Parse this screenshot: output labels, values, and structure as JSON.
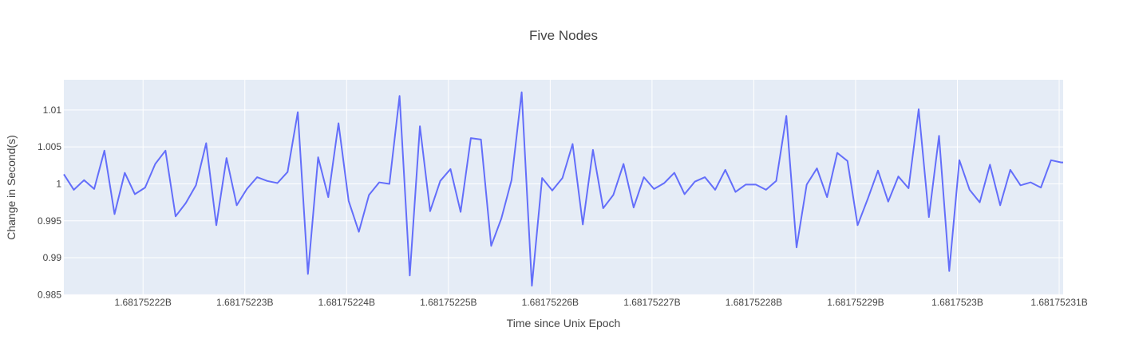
{
  "chart_data": {
    "type": "line",
    "title": "Five Nodes",
    "xlabel": "Time since Unix Epoch",
    "ylabel": "Change in Second(s)",
    "xlim": [
      1681752212.22,
      1681752310.39
    ],
    "ylim": [
      0.98493,
      1.01409
    ],
    "grid": true,
    "x_ticks": [
      1681752220,
      1681752230,
      1681752240,
      1681752250,
      1681752260,
      1681752270,
      1681752280,
      1681752290,
      1681752300,
      1681752310
    ],
    "x_tick_labels": [
      "1.68175222B",
      "1.68175223B",
      "1.68175224B",
      "1.68175225B",
      "1.68175226B",
      "1.68175227B",
      "1.68175228B",
      "1.68175229B",
      "1.6817523B",
      "1.68175231B"
    ],
    "y_ticks": [
      0.985,
      0.99,
      0.995,
      1.0,
      1.005,
      1.01
    ],
    "y_tick_labels": [
      "0.985",
      "0.99",
      "0.995",
      "1",
      "1.005",
      "1.01"
    ],
    "colors": {
      "line": "#636efa",
      "plot_bg": "#e5ecf6",
      "grid": "#ffffff"
    },
    "series": [
      {
        "x": [
          1681752212.22,
          1681752213.2,
          1681752214.2,
          1681752215.2,
          1681752216.2,
          1681752217.2,
          1681752218.2,
          1681752219.2,
          1681752220.2,
          1681752221.2,
          1681752222.2,
          1681752223.2,
          1681752224.2,
          1681752225.2,
          1681752226.2,
          1681752227.2,
          1681752228.2,
          1681752229.2,
          1681752230.2,
          1681752231.2,
          1681752232.2,
          1681752233.2,
          1681752234.2,
          1681752235.2,
          1681752236.2,
          1681752237.2,
          1681752238.2,
          1681752239.2,
          1681752240.2,
          1681752241.2,
          1681752242.2,
          1681752243.2,
          1681752244.2,
          1681752245.2,
          1681752246.2,
          1681752247.2,
          1681752248.2,
          1681752249.2,
          1681752250.2,
          1681752251.2,
          1681752252.2,
          1681752253.2,
          1681752254.2,
          1681752255.2,
          1681752256.2,
          1681752257.2,
          1681752258.2,
          1681752259.2,
          1681752260.2,
          1681752261.2,
          1681752262.2,
          1681752263.2,
          1681752264.2,
          1681752265.2,
          1681752266.2,
          1681752267.2,
          1681752268.2,
          1681752269.2,
          1681752270.2,
          1681752271.2,
          1681752272.2,
          1681752273.2,
          1681752274.2,
          1681752275.2,
          1681752276.2,
          1681752277.2,
          1681752278.2,
          1681752279.2,
          1681752280.2,
          1681752281.2,
          1681752282.2,
          1681752283.2,
          1681752284.2,
          1681752285.2,
          1681752286.2,
          1681752287.2,
          1681752288.2,
          1681752289.2,
          1681752290.2,
          1681752291.2,
          1681752292.2,
          1681752293.2,
          1681752294.2,
          1681752295.2,
          1681752296.2,
          1681752297.2,
          1681752298.2,
          1681752299.2,
          1681752300.2,
          1681752301.2,
          1681752302.2,
          1681752303.2,
          1681752304.2,
          1681752305.2,
          1681752306.2,
          1681752307.2,
          1681752308.2,
          1681752309.2,
          1681752310.2,
          1681752310.39
        ],
        "y": [
          1.0013,
          0.9992,
          1.0005,
          0.9993,
          1.0045,
          0.9959,
          1.0015,
          0.9986,
          0.9995,
          1.0027,
          1.0045,
          0.9956,
          0.9974,
          0.9998,
          1.0055,
          0.9944,
          1.0035,
          0.9971,
          0.9993,
          1.0009,
          1.0004,
          1.0001,
          1.0016,
          1.0097,
          0.9878,
          1.0036,
          0.9982,
          1.0082,
          0.9977,
          0.9935,
          0.9985,
          1.0002,
          1.0,
          1.0119,
          0.9876,
          1.0078,
          0.9963,
          1.0004,
          1.002,
          0.9962,
          1.0062,
          1.006,
          0.9916,
          0.9953,
          1.0005,
          1.0124,
          0.9862,
          1.0008,
          0.9991,
          1.0008,
          1.0054,
          0.9945,
          1.0046,
          0.9967,
          0.9985,
          1.0027,
          0.9968,
          1.0009,
          0.9993,
          1.0001,
          1.0015,
          0.9986,
          1.0003,
          1.0009,
          0.9992,
          1.0019,
          0.9989,
          0.9999,
          0.9999,
          0.9992,
          1.0004,
          1.0092,
          0.9914,
          0.9999,
          1.0021,
          0.9982,
          1.0042,
          1.0031,
          0.9944,
          0.998,
          1.0018,
          0.9976,
          1.001,
          0.9994,
          1.0101,
          0.9955,
          1.0065,
          0.9882,
          1.0032,
          0.9992,
          0.9975,
          1.0026,
          0.9971,
          1.0019,
          0.9998,
          1.0002,
          0.9995,
          1.0032,
          1.0029,
          1.0029
        ]
      }
    ]
  }
}
